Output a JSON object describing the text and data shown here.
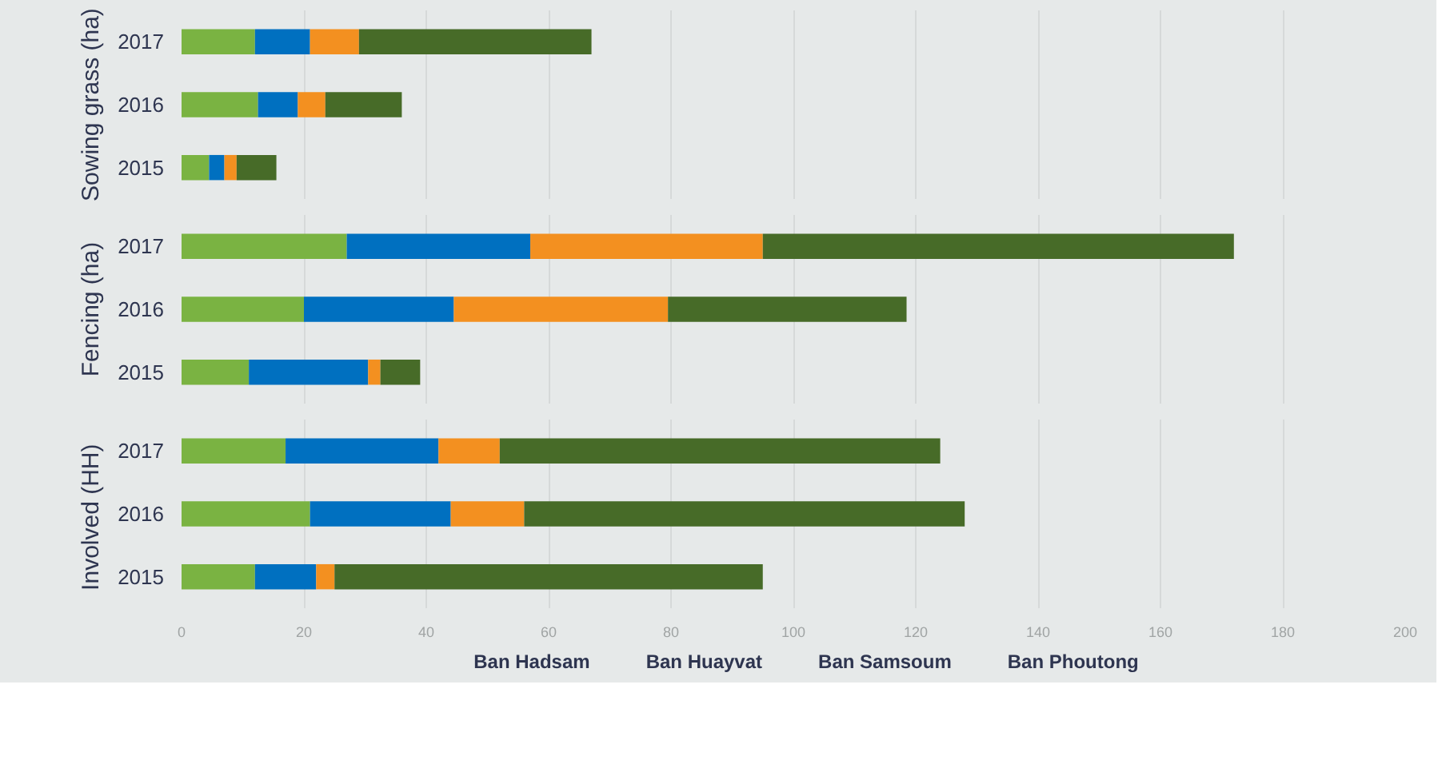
{
  "chart_data": [
    {
      "type": "bar",
      "orientation": "horizontal",
      "stacked": true,
      "ylabel": "Sowing grass (ha)",
      "categories": [
        "2017",
        "2016",
        "2015"
      ],
      "xlim": [
        0,
        200
      ],
      "xticks": [
        0,
        20,
        40,
        60,
        80,
        100,
        120,
        140,
        160,
        180,
        200
      ],
      "grid": "x",
      "tick_labels": "y",
      "legend": false,
      "series": [
        {
          "color": "#7ab342",
          "values": [
            12,
            12.5,
            4.5
          ]
        },
        {
          "color": "#0070c0",
          "values": [
            9,
            6.5,
            2.5
          ]
        },
        {
          "color": "#f39020",
          "values": [
            8,
            4.5,
            2
          ]
        },
        {
          "color": "#476b28",
          "values": [
            38,
            12.5,
            6.5
          ]
        }
      ]
    },
    {
      "type": "bar",
      "orientation": "horizontal",
      "stacked": true,
      "ylabel": "Fencing (ha)",
      "categories": [
        "2017",
        "2016",
        "2015"
      ],
      "xlim": [
        0,
        200
      ],
      "xticks": [
        0,
        20,
        40,
        60,
        80,
        100,
        120,
        140,
        160,
        180,
        200
      ],
      "grid": "x",
      "tick_labels": "y",
      "legend": false,
      "series": [
        {
          "color": "#7ab342",
          "values": [
            27,
            20,
            11
          ]
        },
        {
          "color": "#0070c0",
          "values": [
            30,
            24.5,
            19.5
          ]
        },
        {
          "color": "#f39020",
          "values": [
            38,
            35,
            2
          ]
        },
        {
          "color": "#476b28",
          "values": [
            77,
            39,
            6.5
          ]
        }
      ]
    },
    {
      "type": "bar",
      "orientation": "horizontal",
      "stacked": true,
      "ylabel": "Involved  (HH)",
      "categories": [
        "2017",
        "2016",
        "2015"
      ],
      "xlim": [
        0,
        200
      ],
      "xticks": [
        0,
        20,
        40,
        60,
        80,
        100,
        120,
        140,
        160,
        180,
        200
      ],
      "grid": "x",
      "legend": "bottom",
      "series": [
        {
          "name": "Ban Hadsam",
          "color": "#7ab342",
          "values": [
            17,
            21,
            12
          ]
        },
        {
          "name": "Ban Huayvat",
          "color": "#0070c0",
          "values": [
            25,
            23,
            10
          ]
        },
        {
          "name": "Ban Samsoum",
          "color": "#f39020",
          "values": [
            10,
            12,
            3
          ]
        },
        {
          "name": "Ban Phoutong",
          "color": "#476b28",
          "values": [
            72,
            72,
            70
          ]
        }
      ]
    }
  ]
}
